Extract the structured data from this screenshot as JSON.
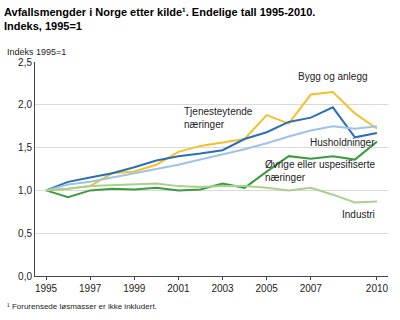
{
  "chart_data": {
    "type": "line",
    "title": "Avfallsmengder i Norge etter kilde¹. Endelige tall 1995-2010.",
    "subtitle": "Indeks, 1995=1",
    "y_label": "Indeks 1995=1",
    "note": "¹ Forurensede løsmasser er ikke inkludert.",
    "x": [
      1995,
      1996,
      1997,
      1998,
      1999,
      2000,
      2001,
      2002,
      2003,
      2004,
      2005,
      2006,
      2007,
      2008,
      2009,
      2010
    ],
    "xlim": [
      1994.5,
      2010.5
    ],
    "xticks": [
      1995,
      1997,
      1999,
      2001,
      2003,
      2005,
      2007,
      2010
    ],
    "ylim": [
      0,
      2.5
    ],
    "yticks": [
      {
        "value": 0,
        "label": "0,0"
      },
      {
        "value": 0.5,
        "label": "0,5"
      },
      {
        "value": 1,
        "label": "1,0"
      },
      {
        "value": 1.5,
        "label": "1,5"
      },
      {
        "value": 2,
        "label": "2,0"
      },
      {
        "value": 2.5,
        "label": "2,5"
      }
    ],
    "grid": true,
    "series": [
      {
        "name": "Bygg og anlegg",
        "color": "#f5c02a",
        "values": [
          1.0,
          1.02,
          1.05,
          1.2,
          1.22,
          1.3,
          1.45,
          1.52,
          1.56,
          1.6,
          1.88,
          1.78,
          2.12,
          2.15,
          1.9,
          1.72
        ]
      },
      {
        "name": "Tjenesteytende næringer",
        "color": "#2a6fb5",
        "values": [
          1.0,
          1.1,
          1.15,
          1.2,
          1.27,
          1.35,
          1.4,
          1.43,
          1.47,
          1.6,
          1.68,
          1.8,
          1.85,
          1.97,
          1.62,
          1.67
        ]
      },
      {
        "name": "Husholdninger",
        "color": "#9dc3e6",
        "values": [
          1.0,
          1.07,
          1.1,
          1.15,
          1.2,
          1.25,
          1.3,
          1.36,
          1.42,
          1.48,
          1.55,
          1.63,
          1.7,
          1.75,
          1.72,
          1.75
        ]
      },
      {
        "name": "Øvrige eller uspesifiserte næringer",
        "color": "#3c9b3f",
        "values": [
          1.0,
          0.92,
          1.0,
          1.02,
          1.01,
          1.03,
          1.0,
          1.01,
          1.08,
          1.03,
          1.22,
          1.4,
          1.37,
          1.4,
          1.36,
          1.57
        ]
      },
      {
        "name": "Industri",
        "color": "#a9d18e",
        "values": [
          1.0,
          1.02,
          1.05,
          1.06,
          1.07,
          1.08,
          1.05,
          1.04,
          1.05,
          1.05,
          1.03,
          1.0,
          1.03,
          0.95,
          0.86,
          0.87
        ]
      }
    ]
  }
}
